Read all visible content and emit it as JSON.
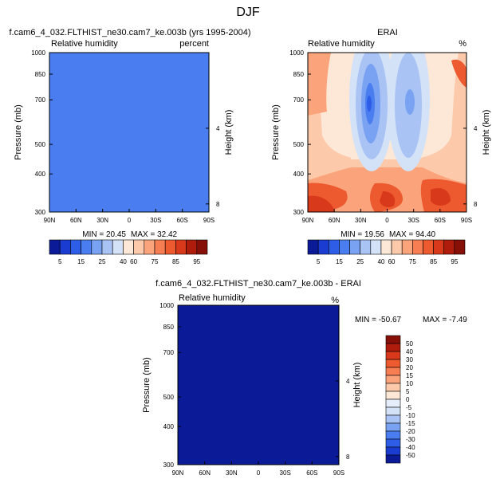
{
  "page_title": "DJF",
  "colors": {
    "model_fill": "#4a7ef0",
    "diff_fill": "#0b1a96",
    "axis": "#000000"
  },
  "abs_palette": [
    "#0b1a96",
    "#1a3cd0",
    "#2e5ee8",
    "#4a7ef0",
    "#7aa2f2",
    "#a9c3f4",
    "#d4e2f7",
    "#fde7d6",
    "#fccaaa",
    "#fba47b",
    "#f67e52",
    "#ee5a2f",
    "#d8391a",
    "#b01c0b",
    "#861008"
  ],
  "diff_palette": [
    "#0b1a96",
    "#1a3cd0",
    "#2e5ee8",
    "#4a7ef0",
    "#7aa2f2",
    "#a9c3f4",
    "#d4e2f7",
    "#e6eefb",
    "#fde7d6",
    "#fccaaa",
    "#fba47b",
    "#f67e52",
    "#ee5a2f",
    "#d8391a",
    "#b01c0b",
    "#861008"
  ],
  "chart_data": [
    {
      "id": "model",
      "type": "heatmap",
      "title": "f.cam6_4_032.FLTHIST_ne30.cam7_ke.003b (yrs 1995-2004)",
      "left_label": "Relative humidity",
      "right_label": "percent",
      "xlabel": "",
      "ylabel": "Pressure (mb)",
      "ylabel_right": "Height (km)",
      "x_ticks": [
        "90N",
        "60N",
        "30N",
        "0",
        "30S",
        "60S",
        "90S"
      ],
      "y_ticks": [
        "300",
        "400",
        "500",
        "700",
        "850",
        "1000"
      ],
      "y_ticks_right": [
        "8",
        "4"
      ],
      "ylim": [
        1000,
        300
      ],
      "min_text": "MIN = 20.45",
      "max_text": "MAX = 32.42",
      "field": "uniform",
      "colorbar_labels": [
        "5",
        "15",
        "25",
        "40",
        "60",
        "75",
        "85",
        "95"
      ]
    },
    {
      "id": "obs",
      "type": "heatmap",
      "title": "ERAI",
      "left_label": "Relative humidity",
      "right_label": "%",
      "xlabel": "",
      "ylabel": "Pressure (mb)",
      "ylabel_right": "Height (km)",
      "x_ticks": [
        "90N",
        "60N",
        "30N",
        "0",
        "30S",
        "60S",
        "90S"
      ],
      "y_ticks": [
        "300",
        "400",
        "500",
        "700",
        "850",
        "1000"
      ],
      "y_ticks_right": [
        "8",
        "4"
      ],
      "ylim": [
        1000,
        300
      ],
      "min_text": "MIN = 19.56",
      "max_text": "MAX = 94.40",
      "field": "contour",
      "colorbar_labels": [
        "5",
        "15",
        "25",
        "40",
        "60",
        "75",
        "85",
        "95"
      ]
    },
    {
      "id": "diff",
      "type": "heatmap",
      "title": "f.cam6_4_032.FLTHIST_ne30.cam7_ke.003b - ERAI",
      "left_label": "Relative humidity",
      "right_label": "%",
      "xlabel": "",
      "ylabel": "Pressure (mb)",
      "ylabel_right": "Height (km)",
      "x_ticks": [
        "90N",
        "60N",
        "30N",
        "0",
        "30S",
        "60S",
        "90S"
      ],
      "y_ticks": [
        "300",
        "400",
        "500",
        "700",
        "850",
        "1000"
      ],
      "y_ticks_right": [
        "8",
        "4"
      ],
      "ylim": [
        1000,
        300
      ],
      "min_text": "MIN = -50.67",
      "max_text": "MAX = -7.49",
      "field": "uniform",
      "colorbar_labels": [
        "50",
        "40",
        "30",
        "20",
        "15",
        "10",
        "5",
        "0",
        "-5",
        "-10",
        "-15",
        "-20",
        "-30",
        "-40",
        "-50"
      ]
    }
  ]
}
